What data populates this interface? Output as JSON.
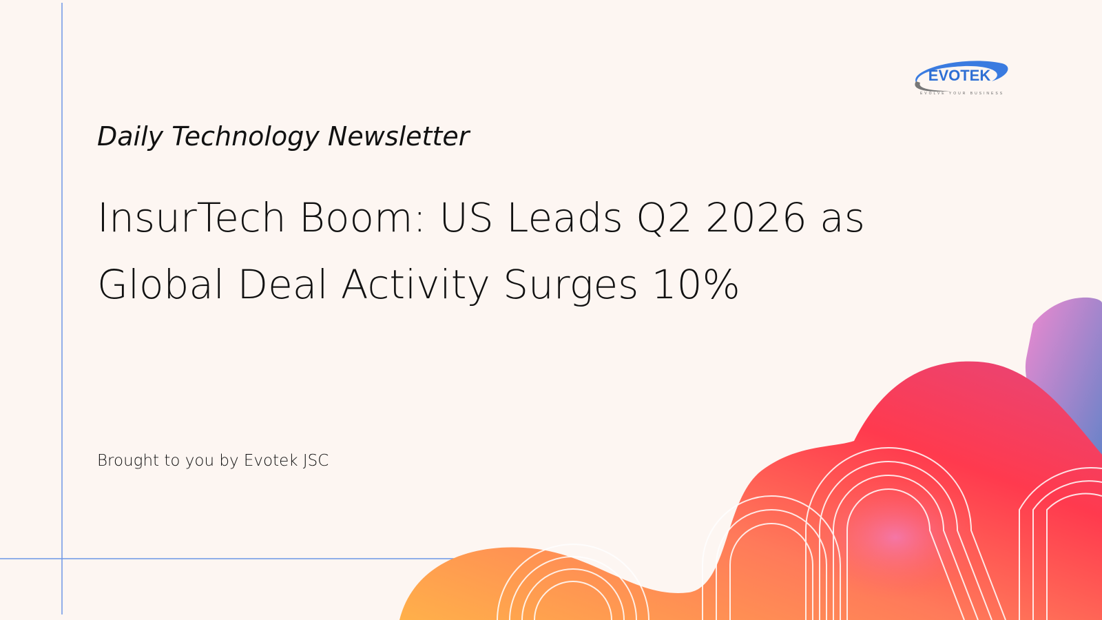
{
  "logo": {
    "name": "EVOTEK",
    "tagline": "EVOLVE YOUR BUSINESS"
  },
  "header": {
    "label": "Daily Technology Newsletter"
  },
  "title": {
    "lines": [
      "InsurTech Boom: US Leads Q2 2026 as",
      "Global Deal Activity Surges 10%"
    ]
  },
  "footer": {
    "credit": "Brought to you by Evotek JSC"
  }
}
